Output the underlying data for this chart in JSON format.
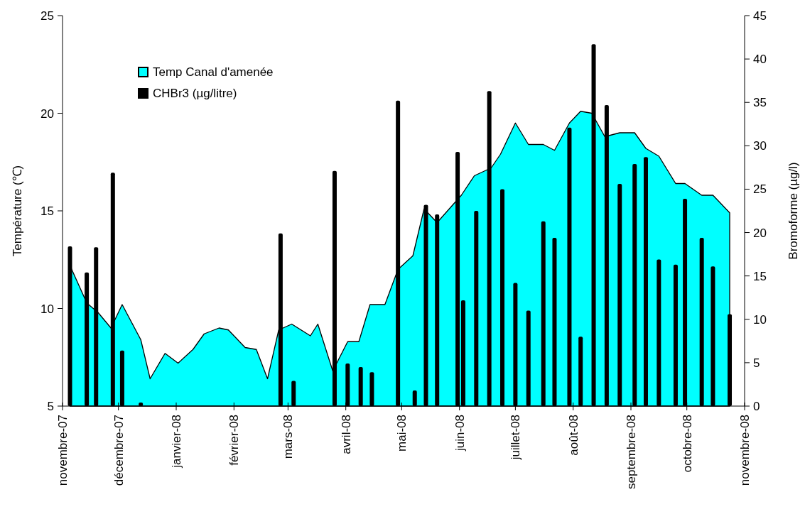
{
  "chart_data": {
    "type": "area",
    "ylabel": "Température (℃)",
    "y2label": "Bromoforme (µg/l)",
    "legend": "top left",
    "grid": false,
    "xlim": [
      "2007-11-01",
      "2008-11-01"
    ],
    "xticks": [
      {
        "value": "2007-11-01",
        "label": "novembre-07"
      },
      {
        "value": "2007-12-01",
        "label": "décembre-07"
      },
      {
        "value": "2008-01-01",
        "label": "janvier-08"
      },
      {
        "value": "2008-02-01",
        "label": "février-08"
      },
      {
        "value": "2008-03-01",
        "label": "mars-08"
      },
      {
        "value": "2008-04-01",
        "label": "avril-08"
      },
      {
        "value": "2008-05-01",
        "label": "mai-08"
      },
      {
        "value": "2008-06-01",
        "label": "juin-08"
      },
      {
        "value": "2008-07-01",
        "label": "juillet-08"
      },
      {
        "value": "2008-08-01",
        "label": "août-08"
      },
      {
        "value": "2008-09-01",
        "label": "septembre-08"
      },
      {
        "value": "2008-10-01",
        "label": "octobre-08"
      },
      {
        "value": "2008-11-01",
        "label": "novembre-08"
      }
    ],
    "ylim": [
      5,
      25
    ],
    "yticks": [
      5,
      10,
      15,
      20,
      25
    ],
    "y2lim": [
      0,
      45
    ],
    "y2ticks": [
      0,
      5,
      10,
      15,
      20,
      25,
      30,
      35,
      40,
      45
    ],
    "series": [
      {
        "name": "Temp Canal d'amenée",
        "axis": "y",
        "color": "#00ffff",
        "x": [
          "2007-11-05",
          "2007-11-13",
          "2007-11-15",
          "2007-11-20",
          "2007-11-27",
          "2007-12-03",
          "2007-12-13",
          "2007-12-18",
          "2007-12-26",
          "2008-01-02",
          "2008-01-10",
          "2008-01-16",
          "2008-01-24",
          "2008-01-29",
          "2008-02-07",
          "2008-02-13",
          "2008-02-19",
          "2008-02-25",
          "2008-03-03",
          "2008-03-13",
          "2008-03-17",
          "2008-03-25",
          "2008-04-02",
          "2008-04-08",
          "2008-04-14",
          "2008-04-22",
          "2008-04-29",
          "2008-05-07",
          "2008-05-13",
          "2008-05-20",
          "2008-06-02",
          "2008-06-09",
          "2008-06-18",
          "2008-06-23",
          "2008-07-01",
          "2008-07-08",
          "2008-07-16",
          "2008-07-22",
          "2008-07-30",
          "2008-08-05",
          "2008-08-11",
          "2008-08-18",
          "2008-08-26",
          "2008-09-03",
          "2008-09-09",
          "2008-09-16",
          "2008-09-25",
          "2008-09-30",
          "2008-10-09",
          "2008-10-15",
          "2008-10-24"
        ],
        "values": [
          12.2,
          10.5,
          10.2,
          9.8,
          9.0,
          10.2,
          8.4,
          6.4,
          7.7,
          7.2,
          7.9,
          8.7,
          9.0,
          8.9,
          8.0,
          7.9,
          6.4,
          8.9,
          9.2,
          8.6,
          9.2,
          6.8,
          8.3,
          8.3,
          10.2,
          10.2,
          12.0,
          12.7,
          15.1,
          14.4,
          15.8,
          16.8,
          17.2,
          17.9,
          19.5,
          18.4,
          18.4,
          18.1,
          19.5,
          20.1,
          20.0,
          18.8,
          19.0,
          19.0,
          18.2,
          17.8,
          16.4,
          16.4,
          15.8,
          15.8,
          14.9
        ]
      },
      {
        "name": "CHBr3 (µg/litre)",
        "type": "bar",
        "axis": "y2",
        "color": "#000000",
        "x": [
          "2007-11-05",
          "2007-11-14",
          "2007-11-19",
          "2007-11-28",
          "2007-12-03",
          "2007-12-13",
          "2008-02-26",
          "2008-03-04",
          "2008-03-26",
          "2008-04-02",
          "2008-04-09",
          "2008-04-15",
          "2008-04-29",
          "2008-05-08",
          "2008-05-14",
          "2008-05-20",
          "2008-05-31",
          "2008-06-03",
          "2008-06-10",
          "2008-06-17",
          "2008-06-24",
          "2008-07-01",
          "2008-07-08",
          "2008-07-16",
          "2008-07-22",
          "2008-07-30",
          "2008-08-05",
          "2008-08-12",
          "2008-08-19",
          "2008-08-26",
          "2008-09-03",
          "2008-09-09",
          "2008-09-16",
          "2008-09-25",
          "2008-09-30",
          "2008-10-09",
          "2008-10-15",
          "2008-10-24"
        ],
        "values": [
          18.4,
          15.4,
          18.3,
          26.9,
          6.4,
          0.4,
          19.9,
          2.9,
          27.1,
          4.9,
          4.5,
          3.9,
          35.2,
          1.8,
          23.2,
          22.1,
          29.3,
          12.2,
          22.5,
          36.3,
          25.0,
          14.2,
          11.0,
          21.3,
          19.4,
          32.1,
          8.0,
          41.7,
          34.7,
          25.6,
          27.9,
          28.7,
          16.9,
          16.3,
          23.9,
          19.4,
          16.1,
          10.6
        ]
      }
    ]
  }
}
